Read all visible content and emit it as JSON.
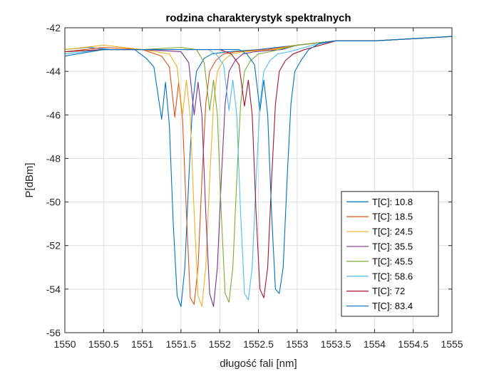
{
  "chart_data": {
    "type": "line",
    "title": "rodzina charakterystyk spektralnych",
    "xlabel": "długość fali [nm]",
    "ylabel": "P[dBm]",
    "xlim": [
      1550,
      1555
    ],
    "ylim": [
      -56,
      -42
    ],
    "xticks": [
      1550,
      1550.5,
      1551,
      1551.5,
      1552,
      1552.5,
      1553,
      1553.5,
      1554,
      1554.5,
      1555
    ],
    "xtick_labels": [
      "1550",
      "1550.5",
      "1551",
      "1551.5",
      "1552",
      "1552.5",
      "1553",
      "1553.5",
      "1554",
      "1554.5",
      "1555"
    ],
    "yticks": [
      -42,
      -44,
      -46,
      -48,
      -50,
      -52,
      -54,
      -56
    ],
    "ytick_labels": [
      "-42",
      "-44",
      "-46",
      "-48",
      "-50",
      "-52",
      "-54",
      "-56"
    ],
    "grid": true,
    "legend_position": "lower-right",
    "series": [
      {
        "name": "T[C]: 10.8",
        "color": "#0072BD",
        "x": [
          1550,
          1550.3,
          1550.6,
          1550.9,
          1551.05,
          1551.15,
          1551.25,
          1551.3,
          1551.35,
          1551.4,
          1551.45,
          1551.5,
          1551.55,
          1551.6,
          1551.65,
          1551.7,
          1551.8,
          1551.9,
          1552.1,
          1552.5,
          1553,
          1553.5,
          1554,
          1554.5,
          1555
        ],
        "y": [
          -43,
          -42.9,
          -43,
          -43,
          -43.4,
          -43.8,
          -46.2,
          -44.5,
          -46.5,
          -51,
          -54.3,
          -54.8,
          -53,
          -49,
          -45.5,
          -44,
          -43.4,
          -43.2,
          -43.1,
          -43,
          -42.8,
          -42.6,
          -42.6,
          -42.5,
          -42.4
        ]
      },
      {
        "name": "T[C]: 18.5",
        "color": "#D95319",
        "x": [
          1550,
          1550.5,
          1551,
          1551.25,
          1551.35,
          1551.42,
          1551.47,
          1551.52,
          1551.57,
          1551.62,
          1551.67,
          1551.72,
          1551.77,
          1551.82,
          1551.87,
          1551.95,
          1552.05,
          1552.2,
          1552.6,
          1553,
          1553.5,
          1554,
          1554.5,
          1555
        ],
        "y": [
          -43.1,
          -42.9,
          -43,
          -43.3,
          -43.8,
          -46.1,
          -44.5,
          -46.2,
          -50.5,
          -54.4,
          -54.7,
          -53,
          -49,
          -45.5,
          -44,
          -43.5,
          -43.2,
          -43.1,
          -43,
          -42.8,
          -42.6,
          -42.6,
          -42.5,
          -42.4
        ]
      },
      {
        "name": "T[C]: 24.5",
        "color": "#EDB120",
        "x": [
          1550,
          1550.5,
          1551,
          1551.35,
          1551.45,
          1551.52,
          1551.57,
          1551.62,
          1551.67,
          1551.72,
          1551.77,
          1551.82,
          1551.87,
          1551.92,
          1551.97,
          1552.05,
          1552.15,
          1552.3,
          1552.7,
          1553,
          1553.5,
          1554,
          1554.5,
          1555
        ],
        "y": [
          -43,
          -42.8,
          -43,
          -43.2,
          -43.8,
          -46,
          -44.4,
          -46.1,
          -50.5,
          -54.3,
          -54.8,
          -53,
          -49,
          -45.5,
          -44,
          -43.5,
          -43.2,
          -43.1,
          -43,
          -42.8,
          -42.6,
          -42.6,
          -42.5,
          -42.4
        ]
      },
      {
        "name": "T[C]: 35.5",
        "color": "#7E2F8E",
        "x": [
          1550,
          1550.5,
          1551,
          1551.5,
          1551.6,
          1551.67,
          1551.72,
          1551.77,
          1551.82,
          1551.87,
          1551.92,
          1551.97,
          1552.02,
          1552.07,
          1552.12,
          1552.2,
          1552.3,
          1552.45,
          1552.8,
          1553,
          1553.5,
          1554,
          1554.5,
          1555
        ],
        "y": [
          -43.1,
          -43,
          -43,
          -43.1,
          -43.6,
          -46,
          -44.5,
          -46,
          -50.5,
          -54.2,
          -54.8,
          -53,
          -49,
          -45.5,
          -44,
          -43.5,
          -43.2,
          -43.1,
          -43,
          -42.8,
          -42.6,
          -42.6,
          -42.5,
          -42.4
        ]
      },
      {
        "name": "T[C]: 45.5",
        "color": "#77AC30",
        "x": [
          1550,
          1550.5,
          1551,
          1551.5,
          1551.7,
          1551.8,
          1551.87,
          1551.92,
          1551.97,
          1552.02,
          1552.07,
          1552.12,
          1552.17,
          1552.22,
          1552.27,
          1552.32,
          1552.4,
          1552.5,
          1552.65,
          1553,
          1553.5,
          1554,
          1554.5,
          1555
        ],
        "y": [
          -43.1,
          -43,
          -43,
          -42.9,
          -43,
          -43.6,
          -45.8,
          -44.4,
          -46,
          -50.5,
          -54.2,
          -54.6,
          -53,
          -49,
          -45.5,
          -44,
          -43.5,
          -43.2,
          -43.1,
          -42.8,
          -42.6,
          -42.6,
          -42.5,
          -42.4
        ]
      },
      {
        "name": "T[C]: 58.6",
        "color": "#4DBEEE",
        "x": [
          1550,
          1550.5,
          1551,
          1551.5,
          1551.85,
          1551.95,
          1552.05,
          1552.12,
          1552.17,
          1552.22,
          1552.27,
          1552.32,
          1552.37,
          1552.42,
          1552.47,
          1552.52,
          1552.57,
          1552.65,
          1552.75,
          1552.9,
          1553.2,
          1553.5,
          1554,
          1554.5,
          1555
        ],
        "y": [
          -43.2,
          -43,
          -43,
          -43,
          -43,
          -43.2,
          -43.7,
          -45.8,
          -44.4,
          -46,
          -50.5,
          -54.2,
          -54.5,
          -53,
          -49,
          -45.5,
          -44,
          -43.5,
          -43.2,
          -43.1,
          -42.8,
          -42.6,
          -42.6,
          -42.5,
          -42.4
        ]
      },
      {
        "name": "T[C]: 72",
        "color": "#A2142F",
        "x": [
          1550,
          1550.5,
          1551,
          1551.5,
          1552,
          1552.15,
          1552.25,
          1552.32,
          1552.37,
          1552.42,
          1552.47,
          1552.52,
          1552.57,
          1552.62,
          1552.67,
          1552.72,
          1552.77,
          1552.85,
          1552.95,
          1553.1,
          1553.5,
          1554,
          1554.5,
          1555
        ],
        "y": [
          -43.1,
          -43,
          -43,
          -43,
          -43,
          -43.2,
          -43.7,
          -45.6,
          -44.4,
          -46,
          -50.5,
          -54,
          -54.4,
          -53,
          -49,
          -45.5,
          -44,
          -43.5,
          -43.2,
          -43,
          -42.6,
          -42.6,
          -42.5,
          -42.4
        ]
      },
      {
        "name": "T[C]: 83.4",
        "color": "#0072BD",
        "x": [
          1550,
          1550.5,
          1551,
          1551.5,
          1552,
          1552.25,
          1552.35,
          1552.45,
          1552.52,
          1552.57,
          1552.62,
          1552.67,
          1552.72,
          1552.77,
          1552.82,
          1552.87,
          1552.92,
          1552.97,
          1553.05,
          1553.15,
          1553.3,
          1553.5,
          1554,
          1554.5,
          1555
        ],
        "y": [
          -43.3,
          -43,
          -43,
          -43,
          -43,
          -43,
          -43.2,
          -43.7,
          -45.8,
          -44.4,
          -46,
          -50.5,
          -54,
          -54.2,
          -53,
          -49,
          -45.5,
          -44,
          -43.5,
          -43,
          -42.7,
          -42.6,
          -42.6,
          -42.5,
          -42.4
        ]
      }
    ]
  }
}
